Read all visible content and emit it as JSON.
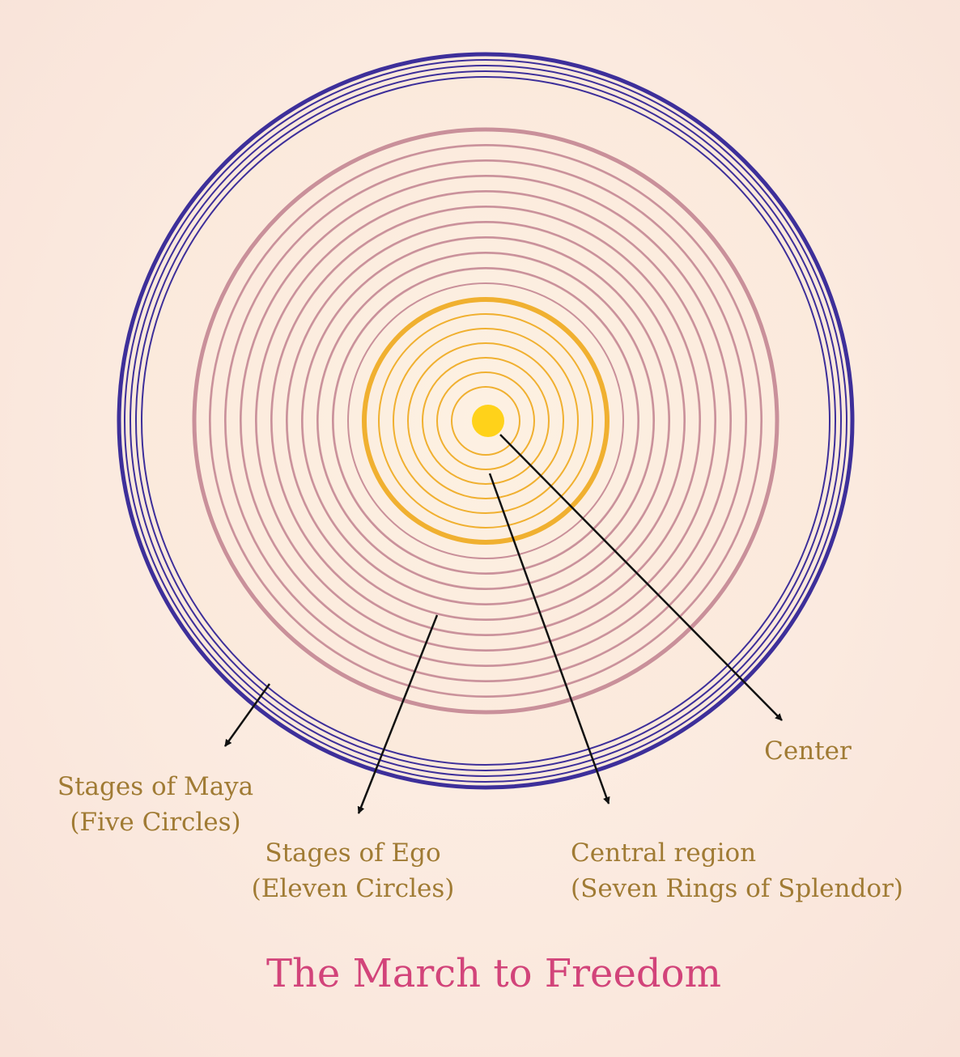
{
  "title": "The March to Freedom",
  "labels": {
    "center": "Center",
    "maya": {
      "line1": "Stages of Maya",
      "line2": "(Five Circles)"
    },
    "ego": {
      "line1": "Stages of Ego",
      "line2": "(Eleven Circles)"
    },
    "central_region": {
      "line1": "Central region",
      "line2": "(Seven Rings of Splendor)"
    }
  },
  "rings": {
    "maya": {
      "count": 5,
      "color": "#3d2f9a"
    },
    "ego": {
      "count": 11,
      "color": "#c9909a"
    },
    "splendor": {
      "count": 7,
      "color": "#f0b030"
    }
  },
  "colors": {
    "center_dot": "#ffd21a",
    "label_text": "#a07b34",
    "title_text": "#d2447a",
    "arrow": "#111111"
  }
}
